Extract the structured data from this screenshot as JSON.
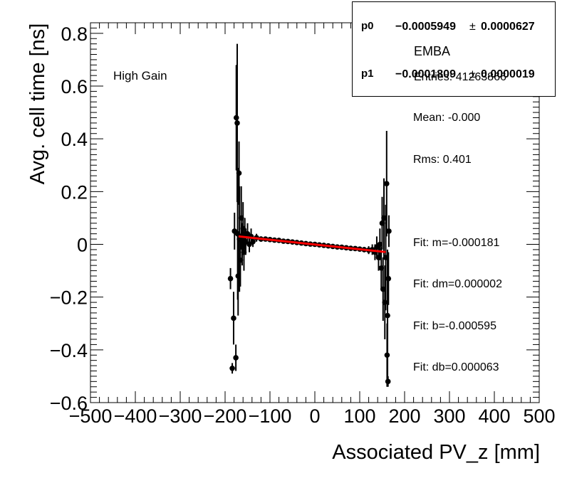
{
  "chart_data": {
    "type": "scatter",
    "title": "",
    "xlabel": "Associated PV_z [mm]",
    "ylabel": "Avg. cell time [ns]",
    "xlim": [
      -500,
      500
    ],
    "ylim": [
      -0.6,
      0.84
    ],
    "x_ticks": [
      -500,
      -400,
      -300,
      -200,
      -100,
      0,
      100,
      200,
      300,
      400,
      500
    ],
    "x_tick_labels": [
      "−500",
      "−400",
      "−300",
      "−200",
      "−100",
      "0",
      "100",
      "200",
      "300",
      "400",
      "500"
    ],
    "y_ticks": [
      -0.6,
      -0.4,
      -0.2,
      0,
      0.2,
      0.4,
      0.6,
      0.8
    ],
    "y_tick_labels": [
      "−0.6",
      "−0.4",
      "−0.2",
      "0",
      "0.2",
      "0.4",
      "0.6",
      "0.8"
    ],
    "annotation": "High Gain",
    "series": [
      {
        "points": [
          {
            "x": -188,
            "y": -0.13,
            "err": 0.04
          },
          {
            "x": -184,
            "y": -0.47,
            "err": 0.02
          },
          {
            "x": -181,
            "y": -0.28,
            "err": 0.1
          },
          {
            "x": -179,
            "y": 0.05,
            "err": 0.07
          },
          {
            "x": -176,
            "y": -0.43,
            "err": 0.05
          },
          {
            "x": -175,
            "y": 0.48,
            "err": 0.2
          },
          {
            "x": -173,
            "y": 0.46,
            "err": 0.3
          },
          {
            "x": -172,
            "y": 0.04,
            "err": 0.25
          },
          {
            "x": -171,
            "y": -0.12,
            "err": 0.15
          },
          {
            "x": -169,
            "y": 0.27,
            "err": 0.12
          },
          {
            "x": -168,
            "y": 0.02,
            "err": 0.2
          },
          {
            "x": -166,
            "y": -0.06,
            "err": 0.1
          },
          {
            "x": -164,
            "y": 0.1,
            "err": 0.12
          },
          {
            "x": -162,
            "y": 0.0,
            "err": 0.08
          },
          {
            "x": -160,
            "y": 0.06,
            "err": 0.1
          },
          {
            "x": -158,
            "y": -0.03,
            "err": 0.07
          },
          {
            "x": -156,
            "y": 0.04,
            "err": 0.06
          },
          {
            "x": -154,
            "y": 0.01,
            "err": 0.05
          },
          {
            "x": -150,
            "y": 0.04,
            "err": 0.04
          },
          {
            "x": -146,
            "y": 0.0,
            "err": 0.03
          },
          {
            "x": -142,
            "y": 0.03,
            "err": 0.03
          },
          {
            "x": -138,
            "y": 0.01,
            "err": 0.02
          },
          {
            "x": -130,
            "y": 0.025,
            "err": 0.015
          },
          {
            "x": -120,
            "y": 0.02,
            "err": 0.01
          },
          {
            "x": -110,
            "y": 0.02,
            "err": 0.008
          },
          {
            "x": -100,
            "y": 0.018,
            "err": 0.006
          },
          {
            "x": -90,
            "y": 0.016,
            "err": 0.005
          },
          {
            "x": -80,
            "y": 0.015,
            "err": 0.004
          },
          {
            "x": -70,
            "y": 0.012,
            "err": 0.004
          },
          {
            "x": -60,
            "y": 0.011,
            "err": 0.003
          },
          {
            "x": -50,
            "y": 0.009,
            "err": 0.003
          },
          {
            "x": -40,
            "y": 0.007,
            "err": 0.003
          },
          {
            "x": -30,
            "y": 0.005,
            "err": 0.003
          },
          {
            "x": -20,
            "y": 0.003,
            "err": 0.003
          },
          {
            "x": -10,
            "y": 0.001,
            "err": 0.003
          },
          {
            "x": 0,
            "y": 0.0,
            "err": 0.003
          },
          {
            "x": 10,
            "y": -0.002,
            "err": 0.003
          },
          {
            "x": 20,
            "y": -0.004,
            "err": 0.003
          },
          {
            "x": 30,
            "y": -0.006,
            "err": 0.003
          },
          {
            "x": 40,
            "y": -0.008,
            "err": 0.003
          },
          {
            "x": 50,
            "y": -0.01,
            "err": 0.003
          },
          {
            "x": 60,
            "y": -0.011,
            "err": 0.004
          },
          {
            "x": 70,
            "y": -0.013,
            "err": 0.004
          },
          {
            "x": 80,
            "y": -0.015,
            "err": 0.005
          },
          {
            "x": 90,
            "y": -0.016,
            "err": 0.006
          },
          {
            "x": 100,
            "y": -0.018,
            "err": 0.008
          },
          {
            "x": 110,
            "y": -0.02,
            "err": 0.01
          },
          {
            "x": 120,
            "y": -0.022,
            "err": 0.015
          },
          {
            "x": 128,
            "y": -0.02,
            "err": 0.02
          },
          {
            "x": 134,
            "y": -0.03,
            "err": 0.03
          },
          {
            "x": 138,
            "y": -0.01,
            "err": 0.04
          },
          {
            "x": 142,
            "y": -0.05,
            "err": 0.05
          },
          {
            "x": 145,
            "y": 0.0,
            "err": 0.06
          },
          {
            "x": 148,
            "y": -0.09,
            "err": 0.08
          },
          {
            "x": 150,
            "y": 0.08,
            "err": 0.1
          },
          {
            "x": 152,
            "y": -0.17,
            "err": 0.12
          },
          {
            "x": 154,
            "y": 0.1,
            "err": 0.15
          },
          {
            "x": 156,
            "y": -0.22,
            "err": 0.14
          },
          {
            "x": 158,
            "y": -0.05,
            "err": 0.2
          },
          {
            "x": 160,
            "y": 0.23,
            "err": 0.2
          },
          {
            "x": 161,
            "y": -0.42,
            "err": 0.12
          },
          {
            "x": 162,
            "y": -0.27,
            "err": 0.25
          },
          {
            "x": 163,
            "y": -0.52,
            "err": 0.02
          },
          {
            "x": 164,
            "y": -0.13,
            "err": 0.1
          },
          {
            "x": 165,
            "y": 0.05,
            "err": 0.06
          }
        ]
      }
    ],
    "fit": {
      "type": "line",
      "m": -0.0001809,
      "b": -0.0005949,
      "x_range": [
        -170,
        158
      ],
      "color": "#ff0000"
    },
    "legend_position": "top-right"
  },
  "fit_box": {
    "p0_name": "p0",
    "p0_value": "−0.0005949",
    "p0_pm": "±",
    "p0_error": "0.0000627",
    "p1_name": "p1",
    "p1_value": "−0.0001809",
    "p1_pm": "±",
    "p1_error": "0.0000019"
  },
  "stats_box": {
    "title": "EMBA",
    "entries": "Entries: 41263866",
    "lines": [
      "Mean: -0.000",
      "Rms: 0.401",
      "",
      "Fit: m=-0.000181",
      "Fit: dm=0.000002",
      "Fit: b=-0.000595",
      "Fit: db=0.000063"
    ]
  },
  "colors": {
    "marker": "#000000",
    "fit_line": "#ff0000",
    "axis": "#000000"
  }
}
